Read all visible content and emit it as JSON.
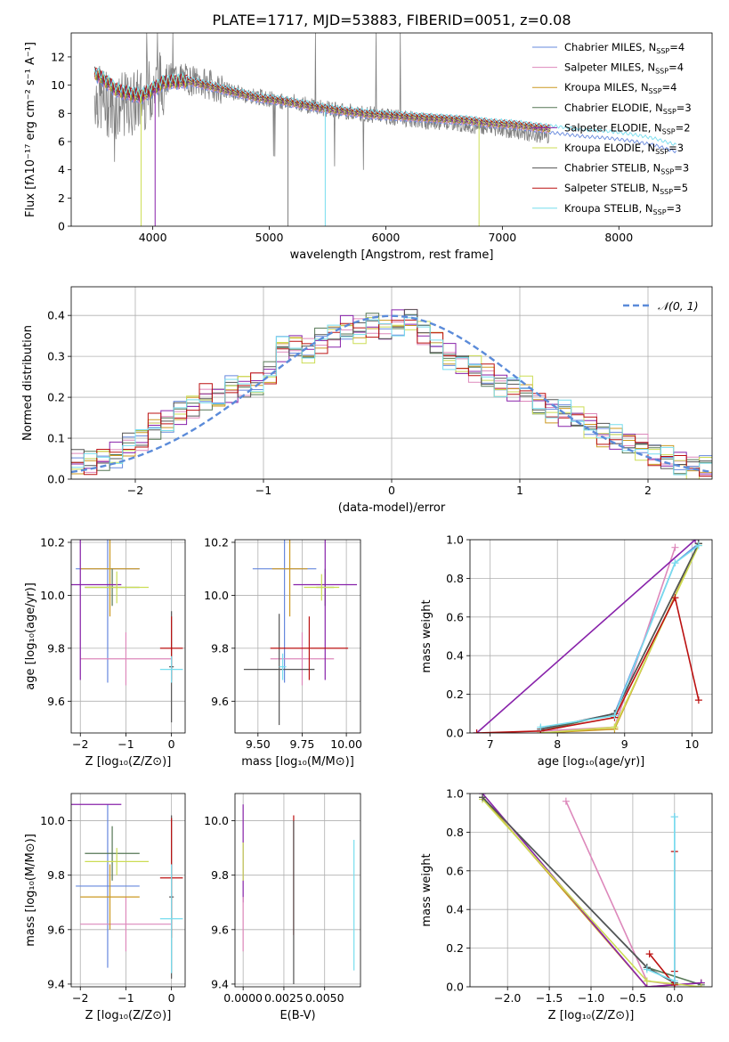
{
  "figure": {
    "title": "PLATE=1717, MJD=53883, FIBERID=0051, z=0.08",
    "colors": {
      "Chabrier MILES": "#6688dd",
      "Salpeter MILES": "#dd88bb",
      "Kroupa MILES": "#cc9922",
      "Chabrier ELODIE": "#557755",
      "Salpeter ELODIE": "#8822aa",
      "Kroupa ELODIE": "#ccdd55",
      "Chabrier STELIB": "#555555",
      "Salpeter STELIB": "#bb1111",
      "Kroupa STELIB": "#77ddee",
      "data": "#808080",
      "normal": "#5b8bd9"
    }
  },
  "chart_data": [
    {
      "id": "spectrum",
      "type": "line",
      "xlabel": "wavelength [Angstrom, rest frame]",
      "ylabel": "Flux [fλ10⁻¹⁷ erg cm⁻² s⁻¹ A⁻¹]",
      "xlim": [
        3300,
        8800
      ],
      "ylim": [
        0,
        13.7
      ],
      "xticks": [
        4000,
        5000,
        6000,
        7000,
        8000
      ],
      "yticks": [
        0,
        2,
        4,
        6,
        8,
        10,
        12
      ],
      "legend_position": "top-right",
      "legend": [
        {
          "label": "Chabrier MILES, N",
          "nssp": "=4",
          "key": "Chabrier MILES"
        },
        {
          "label": "Salpeter MILES, N",
          "nssp": "=4",
          "key": "Salpeter MILES"
        },
        {
          "label": "Kroupa MILES, N",
          "nssp": "=4",
          "key": "Kroupa MILES"
        },
        {
          "label": "Chabrier ELODIE, N",
          "nssp": "=3",
          "key": "Chabrier ELODIE"
        },
        {
          "label": "Salpeter ELODIE, N",
          "nssp": "=2",
          "key": "Salpeter ELODIE"
        },
        {
          "label": "Kroupa ELODIE, N",
          "nssp": "=3",
          "key": "Kroupa ELODIE"
        },
        {
          "label": "Chabrier STELIB, N",
          "nssp": "=3",
          "key": "Chabrier STELIB"
        },
        {
          "label": "Salpeter STELIB, N",
          "nssp": "=5",
          "key": "Salpeter STELIB"
        },
        {
          "label": "Kroupa STELIB, N",
          "nssp": "=3",
          "key": "Kroupa STELIB"
        }
      ],
      "nssp_sub": "SSP",
      "data_spectrum": {
        "x": [
          3500,
          3600,
          3700,
          3800,
          3900,
          4000,
          4100,
          4200,
          4300,
          4400,
          4500,
          4600,
          4700,
          4800,
          4900,
          5000,
          5100,
          5200,
          5300,
          5400,
          5500,
          5600,
          5700,
          5800,
          5900,
          6000,
          6100,
          6200,
          6300,
          6400,
          6500,
          6600,
          6700,
          6800,
          6900,
          7000,
          7100,
          7200,
          7300,
          7400
        ],
        "y": [
          9.3,
          8.7,
          8.5,
          8.6,
          9.0,
          9.8,
          10.3,
          10.7,
          10.4,
          10.2,
          10.0,
          9.7,
          9.5,
          9.3,
          9.2,
          9.0,
          8.9,
          8.8,
          8.6,
          8.5,
          8.3,
          8.2,
          8.1,
          8.0,
          7.9,
          7.8,
          7.7,
          7.6,
          7.5,
          7.4,
          7.4,
          7.3,
          7.2,
          7.1,
          7.0,
          6.9,
          6.7,
          6.6,
          6.5,
          6.4
        ]
      },
      "model_spectrum": {
        "x": [
          3500,
          3700,
          3900,
          4100,
          4300,
          4500,
          4700,
          4900,
          5100,
          5300,
          5500,
          5700,
          5900,
          6100,
          6300,
          6500,
          6700,
          6900,
          7100,
          7300,
          7500,
          7700,
          7900,
          8100,
          8300,
          8500
        ],
        "y": [
          10.9,
          9.6,
          9.2,
          10.2,
          10.3,
          9.9,
          9.5,
          9.1,
          8.9,
          8.6,
          8.3,
          8.1,
          7.9,
          7.8,
          7.7,
          7.6,
          7.5,
          7.3,
          7.2,
          7.0,
          6.8,
          6.6,
          6.5,
          6.3,
          6.0,
          5.5
        ]
      }
    },
    {
      "id": "residuals",
      "type": "line",
      "xlabel": "(data-model)/error",
      "ylabel": "Normed distribution",
      "xlim": [
        -2.5,
        2.5
      ],
      "ylim": [
        0,
        0.47
      ],
      "xticks": [
        -2,
        -1,
        0,
        1,
        2
      ],
      "yticks": [
        0.0,
        0.1,
        0.2,
        0.3,
        0.4
      ],
      "legend_position": "top-right",
      "legend": [
        {
          "label": "𝒩(0, 1)",
          "key": "normal"
        }
      ],
      "histogram_edges": [
        -2.5,
        -2.4,
        -2.3,
        -2.2,
        -2.1,
        -2.0,
        -1.9,
        -1.8,
        -1.7,
        -1.6,
        -1.5,
        -1.4,
        -1.3,
        -1.2,
        -1.1,
        -1.0,
        -0.9,
        -0.8,
        -0.7,
        -0.6,
        -0.5,
        -0.4,
        -0.3,
        -0.2,
        -0.1,
        0.0,
        0.1,
        0.2,
        0.3,
        0.4,
        0.5,
        0.6,
        0.7,
        0.8,
        0.9,
        1.0,
        1.1,
        1.2,
        1.3,
        1.4,
        1.5,
        1.6,
        1.7,
        1.8,
        1.9,
        2.0,
        2.1,
        2.2,
        2.3,
        2.4,
        2.5
      ],
      "histogram_mean": [
        0.04,
        0.04,
        0.05,
        0.06,
        0.08,
        0.1,
        0.13,
        0.14,
        0.16,
        0.18,
        0.2,
        0.2,
        0.22,
        0.23,
        0.23,
        0.26,
        0.32,
        0.33,
        0.31,
        0.34,
        0.35,
        0.37,
        0.36,
        0.38,
        0.36,
        0.38,
        0.39,
        0.36,
        0.33,
        0.3,
        0.28,
        0.27,
        0.25,
        0.23,
        0.22,
        0.22,
        0.18,
        0.17,
        0.16,
        0.15,
        0.13,
        0.11,
        0.1,
        0.09,
        0.08,
        0.06,
        0.05,
        0.04,
        0.03,
        0.03
      ]
    },
    {
      "id": "age-vs-z",
      "type": "scatter",
      "xlabel": "Z [log₁₀(Z/Z⊙)]",
      "ylabel": "age  [log₁₀(age/yr)]",
      "xlim": [
        -2.2,
        0.3
      ],
      "ylim": [
        9.48,
        10.21
      ],
      "xticks": [
        -2,
        -1,
        0
      ],
      "yticks": [
        9.6,
        9.8,
        10.0,
        10.2
      ],
      "points": [
        {
          "key": "Chabrier MILES",
          "x": -1.4,
          "xerr": 0.7,
          "y": 10.1,
          "yerr": 0.43
        },
        {
          "key": "Salpeter MILES",
          "x": -1.0,
          "xerr": 1.0,
          "y": 9.76,
          "yerr": 0.1
        },
        {
          "key": "Kroupa MILES",
          "x": -1.35,
          "xerr": 0.65,
          "y": 10.1,
          "yerr": 0.18
        },
        {
          "key": "Chabrier ELODIE",
          "x": -1.3,
          "xerr": 0.6,
          "y": 10.03,
          "yerr": 0.07
        },
        {
          "key": "Salpeter ELODIE",
          "x": -2.0,
          "xerr": 0.9,
          "y": 10.04,
          "yerr": 0.36
        },
        {
          "key": "Kroupa ELODIE",
          "x": -1.2,
          "xerr": 0.7,
          "y": 10.03,
          "yerr": 0.06
        },
        {
          "key": "Chabrier STELIB",
          "x": 0.0,
          "xerr": 0.05,
          "y": 9.73,
          "yerr": 0.21
        },
        {
          "key": "Salpeter STELIB",
          "x": 0.0,
          "xerr": 0.25,
          "y": 9.8,
          "yerr": 0.12
        },
        {
          "key": "Kroupa STELIB",
          "x": 0.0,
          "xerr": 0.25,
          "y": 9.72,
          "yerr": 0.05
        }
      ]
    },
    {
      "id": "age-vs-mass",
      "type": "scatter",
      "xlabel": "mass [log₁₀(M/M⊙)]",
      "xlim": [
        9.37,
        10.08
      ],
      "ylim": [
        9.48,
        10.21
      ],
      "xticks": [
        9.5,
        9.75,
        10.0
      ],
      "xticklabels": [
        "9.50",
        "9.75",
        "10.00"
      ],
      "yticks": [
        9.6,
        9.8,
        10.0,
        10.2
      ],
      "points": [
        {
          "key": "Chabrier MILES",
          "x": 9.65,
          "xerr": 0.18,
          "y": 10.1,
          "yerr": 0.43
        },
        {
          "key": "Salpeter MILES",
          "x": 9.75,
          "xerr": 0.18,
          "y": 9.76,
          "yerr": 0.1
        },
        {
          "key": "Kroupa MILES",
          "x": 9.68,
          "xerr": 0.1,
          "y": 10.1,
          "yerr": 0.18
        },
        {
          "key": "Chabrier ELODIE",
          "x": 9.88,
          "xerr": 0.05,
          "y": 10.03,
          "yerr": 0.07
        },
        {
          "key": "Salpeter ELODIE",
          "x": 9.88,
          "xerr": 0.18,
          "y": 10.04,
          "yerr": 0.36
        },
        {
          "key": "Kroupa ELODIE",
          "x": 9.86,
          "xerr": 0.1,
          "y": 10.03,
          "yerr": 0.05
        },
        {
          "key": "Chabrier STELIB",
          "x": 9.62,
          "xerr": 0.2,
          "y": 9.72,
          "yerr": 0.21
        },
        {
          "key": "Salpeter STELIB",
          "x": 9.79,
          "xerr": 0.22,
          "y": 9.8,
          "yerr": 0.12
        },
        {
          "key": "Kroupa STELIB",
          "x": 9.64,
          "xerr": 0.02,
          "y": 9.73,
          "yerr": 0.05
        }
      ]
    },
    {
      "id": "weight-vs-age",
      "type": "line",
      "xlabel": "age  [log₁₀(age/yr)]",
      "ylabel": "mass weight",
      "xlim": [
        6.7,
        10.3
      ],
      "ylim": [
        0,
        1.0
      ],
      "xticks": [
        7,
        8,
        9,
        10
      ],
      "yticks": [
        0.0,
        0.2,
        0.4,
        0.6,
        0.8,
        1.0
      ],
      "series": [
        {
          "key": "Chabrier MILES",
          "x": [
            7.75,
            8.85,
            9.75,
            10.1
          ],
          "y": [
            0.02,
            0.1,
            0.88,
            0.98
          ]
        },
        {
          "key": "Salpeter MILES",
          "x": [
            7.75,
            8.85,
            9.75
          ],
          "y": [
            0.01,
            0.03,
            0.96
          ]
        },
        {
          "key": "Kroupa MILES",
          "x": [
            7.75,
            8.85,
            10.1
          ],
          "y": [
            0.0,
            0.02,
            0.98
          ]
        },
        {
          "key": "Chabrier ELODIE",
          "x": [
            7.75,
            8.85,
            10.1
          ],
          "y": [
            0.01,
            0.1,
            0.98
          ]
        },
        {
          "key": "Salpeter ELODIE",
          "x": [
            6.8,
            10.05
          ],
          "y": [
            0.0,
            1.0
          ]
        },
        {
          "key": "Kroupa ELODIE",
          "x": [
            7.75,
            8.85,
            10.1
          ],
          "y": [
            0.0,
            0.03,
            0.97
          ]
        },
        {
          "key": "Chabrier STELIB",
          "x": [
            7.75,
            8.85,
            10.1
          ],
          "y": [
            0.02,
            0.1,
            0.98
          ]
        },
        {
          "key": "Salpeter STELIB",
          "x": [
            6.8,
            7.75,
            8.85,
            9.75,
            10.1
          ],
          "y": [
            0.0,
            0.01,
            0.08,
            0.7,
            0.17
          ]
        },
        {
          "key": "Kroupa STELIB",
          "x": [
            7.75,
            8.85,
            9.75,
            10.1
          ],
          "y": [
            0.03,
            0.09,
            0.88,
            0.97
          ]
        }
      ]
    },
    {
      "id": "mass-vs-z",
      "type": "scatter",
      "xlabel": "Z [log₁₀(Z/Z⊙)]",
      "ylabel": "mass [log₁₀(M/M⊙)]",
      "xlim": [
        -2.2,
        0.3
      ],
      "ylim": [
        9.39,
        10.1
      ],
      "xticks": [
        -2,
        -1,
        0
      ],
      "yticks": [
        9.4,
        9.6,
        9.8,
        10.0
      ],
      "points": [
        {
          "key": "Chabrier MILES",
          "x": -1.4,
          "xerr": 0.7,
          "y": 9.76,
          "yerr": 0.3
        },
        {
          "key": "Salpeter MILES",
          "x": -1.0,
          "xerr": 1.0,
          "y": 9.62,
          "yerr": 0.1
        },
        {
          "key": "Kroupa MILES",
          "x": -1.35,
          "xerr": 0.65,
          "y": 9.72,
          "yerr": 0.12
        },
        {
          "key": "Chabrier ELODIE",
          "x": -1.3,
          "xerr": 0.6,
          "y": 9.88,
          "yerr": 0.1
        },
        {
          "key": "Salpeter ELODIE",
          "x": -2.0,
          "xerr": 0.9,
          "y": 10.06,
          "yerr": 0.0
        },
        {
          "key": "Kroupa ELODIE",
          "x": -1.2,
          "xerr": 0.7,
          "y": 9.85,
          "yerr": 0.05
        },
        {
          "key": "Chabrier STELIB",
          "x": 0.0,
          "xerr": 0.05,
          "y": 9.72,
          "yerr": 0.3
        },
        {
          "key": "Salpeter STELIB",
          "x": 0.0,
          "xerr": 0.25,
          "y": 9.79,
          "yerr": 0.22
        },
        {
          "key": "Kroupa STELIB",
          "x": 0.0,
          "xerr": 0.25,
          "y": 9.64,
          "yerr": 0.2
        }
      ]
    },
    {
      "id": "mass-vs-ebv",
      "type": "scatter",
      "xlabel": "E(B-V)",
      "xlim": [
        -0.0005,
        0.0072
      ],
      "ylim": [
        9.39,
        10.1
      ],
      "xticks": [
        0.0,
        0.0025,
        0.005
      ],
      "xticklabels": [
        "0.0000",
        "0.0025",
        "0.0050"
      ],
      "yticks": [
        9.4,
        9.6,
        9.8,
        10.0
      ],
      "points": [
        {
          "key": "Salpeter ELODIE",
          "x": 0.0,
          "y": 9.88,
          "yerr": 0.18
        },
        {
          "key": "Salpeter MILES",
          "x": 0.0,
          "y": 9.62,
          "yerr": 0.1
        },
        {
          "key": "Kroupa ELODIE",
          "x": 0.0,
          "y": 9.85,
          "yerr": 0.07
        },
        {
          "key": "Salpeter STELIB",
          "x": 0.0031,
          "y": 9.8,
          "yerr": 0.22
        },
        {
          "key": "Chabrier STELIB",
          "x": 0.0031,
          "y": 9.7,
          "yerr": 0.3
        },
        {
          "key": "Kroupa STELIB",
          "x": 0.0068,
          "y": 9.69,
          "yerr": 0.24
        }
      ]
    },
    {
      "id": "weight-vs-z",
      "type": "line",
      "xlabel": "Z [log₁₀(Z/Z⊙)]",
      "ylabel": "mass weight",
      "xlim": [
        -2.45,
        0.45
      ],
      "ylim": [
        0,
        1.0
      ],
      "xticks": [
        -2.0,
        -1.5,
        -1.0,
        -0.5,
        0.0
      ],
      "xticklabels": [
        "−2.0",
        "−1.5",
        "−1.0",
        "−0.5",
        "0.0"
      ],
      "yticks": [
        0.0,
        0.2,
        0.4,
        0.6,
        0.8,
        1.0
      ],
      "series": [
        {
          "key": "Chabrier MILES",
          "x": [
            -2.3,
            -0.33,
            0.0,
            0.0
          ],
          "y": [
            0.98,
            0.1,
            0.02,
            0.88
          ]
        },
        {
          "key": "Salpeter MILES",
          "x": [
            -1.3,
            -0.33,
            0.0
          ],
          "y": [
            0.96,
            0.03,
            0.01
          ]
        },
        {
          "key": "Kroupa MILES",
          "x": [
            -2.3,
            -0.33,
            0.32
          ],
          "y": [
            0.98,
            0.0,
            0.02
          ]
        },
        {
          "key": "Chabrier ELODIE",
          "x": [
            -2.3,
            -0.33,
            0.32
          ],
          "y": [
            0.98,
            0.1,
            0.01
          ]
        },
        {
          "key": "Salpeter ELODIE",
          "x": [
            -2.3,
            -0.33,
            0.32
          ],
          "y": [
            1.0,
            0.0,
            0.02
          ]
        },
        {
          "key": "Kroupa ELODIE",
          "x": [
            -2.3,
            -0.33,
            0.32
          ],
          "y": [
            0.97,
            0.03,
            0.0
          ]
        },
        {
          "key": "Chabrier STELIB",
          "x": [
            -2.3,
            -0.33,
            0.0
          ],
          "y": [
            0.98,
            0.1,
            0.02
          ]
        },
        {
          "key": "Salpeter STELIB",
          "x": [
            -0.3,
            0.0,
            0.0,
            0.0
          ],
          "y": [
            0.17,
            0.01,
            0.7,
            0.08
          ]
        },
        {
          "key": "Kroupa STELIB",
          "x": [
            -0.33,
            0.0,
            0.0
          ],
          "y": [
            0.09,
            0.03,
            0.88
          ]
        }
      ]
    }
  ]
}
